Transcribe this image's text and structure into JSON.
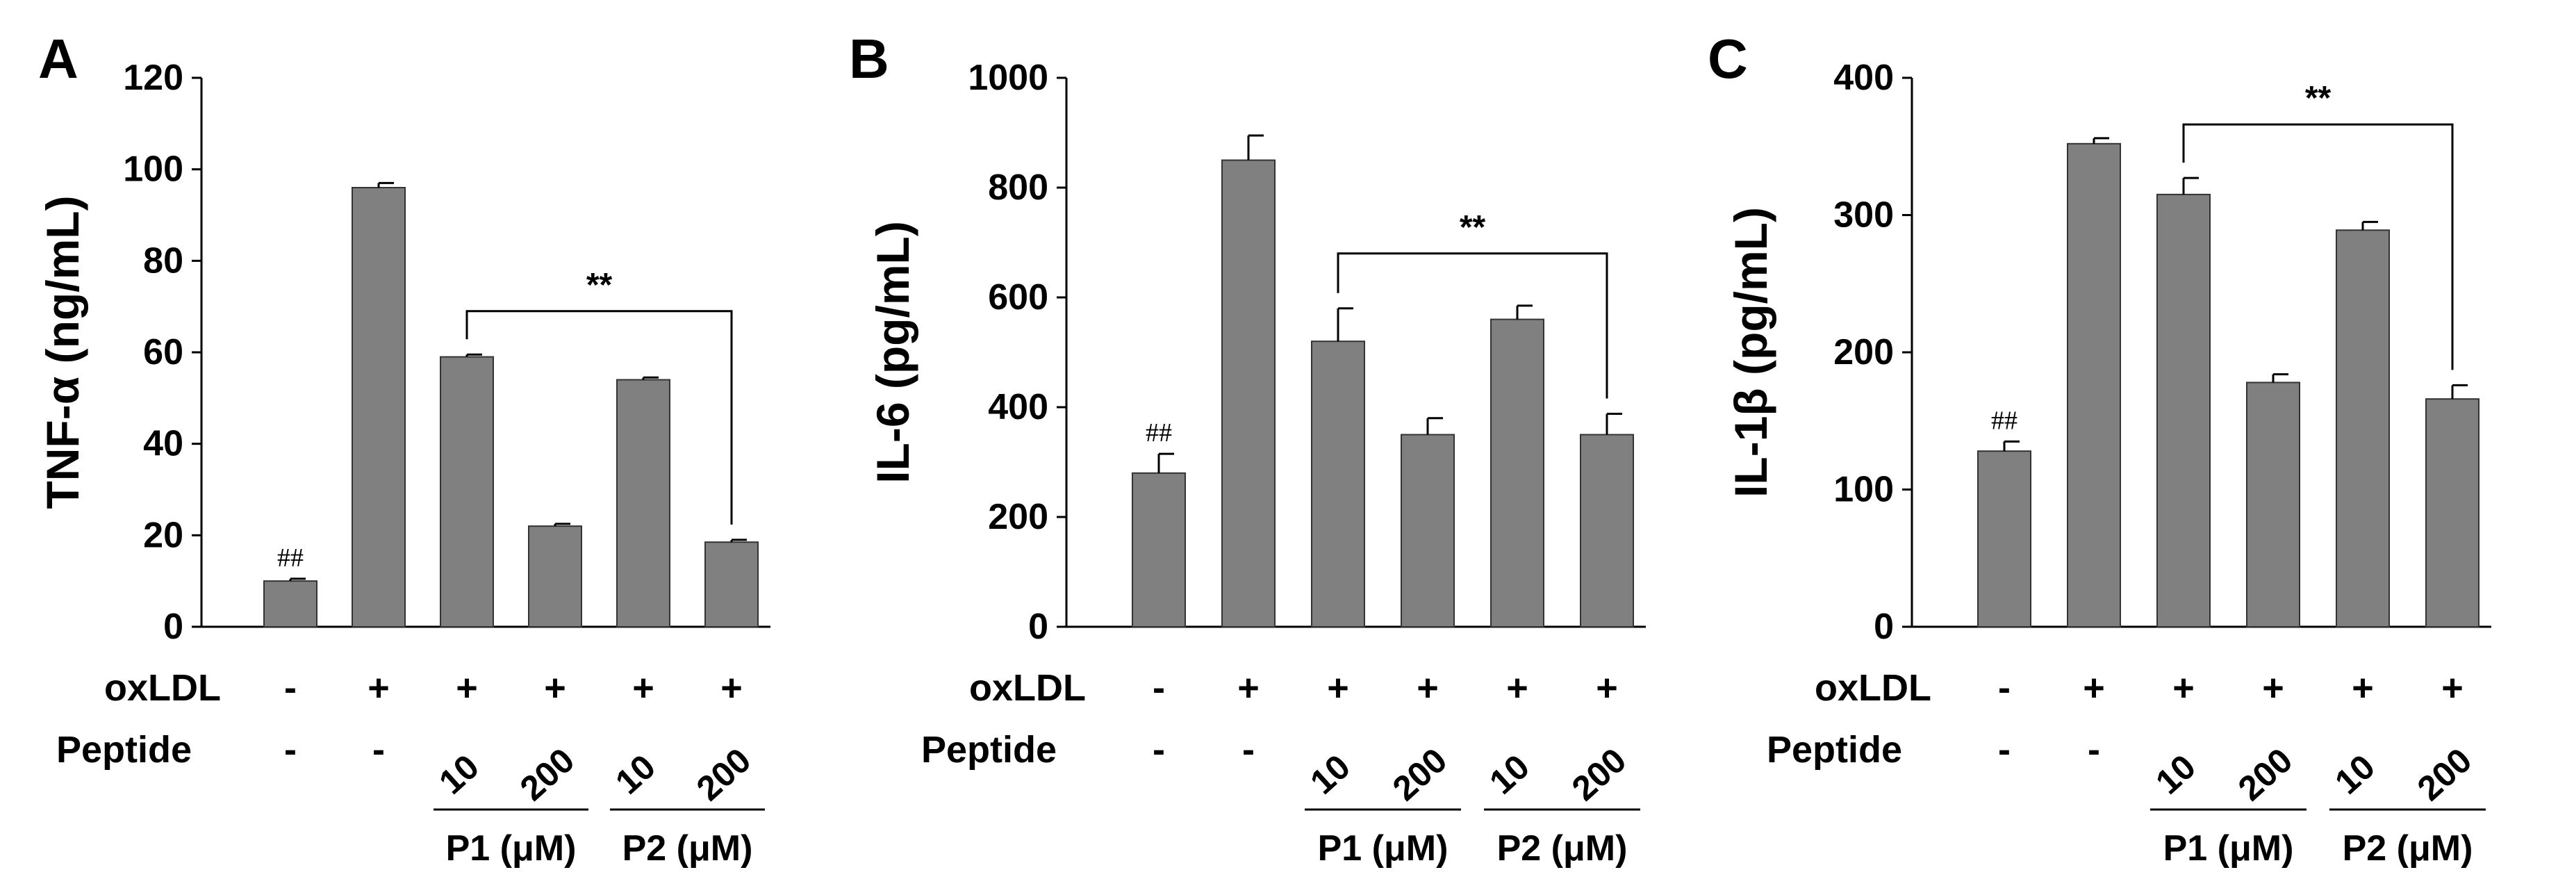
{
  "chart_data": [
    {
      "type": "bar",
      "panel": "A",
      "ylabel": "TNF-α (ng/mL)",
      "ylim": [
        0,
        120
      ],
      "yticks": [
        0,
        20,
        40,
        60,
        80,
        100,
        120
      ],
      "oxldl": [
        "-",
        "+",
        "+",
        "+",
        "+",
        "+"
      ],
      "peptide": [
        "-",
        "-",
        "10",
        "200",
        "10",
        "200"
      ],
      "groups": [
        "P1 (μM)",
        "P2 (μM)"
      ],
      "values": [
        10,
        96,
        59,
        22,
        54,
        18.5
      ],
      "errors": [
        0.5,
        1,
        0.5,
        0.5,
        0.5,
        0.5
      ],
      "hash_label": "##",
      "bracket": {
        "from": 2,
        "to": 5,
        "label": "**"
      }
    },
    {
      "type": "bar",
      "panel": "B",
      "ylabel": "IL-6 (pg/mL)",
      "ylim": [
        0,
        1000
      ],
      "yticks": [
        0,
        200,
        400,
        600,
        800,
        1000
      ],
      "oxldl": [
        "-",
        "+",
        "+",
        "+",
        "+",
        "+"
      ],
      "peptide": [
        "-",
        "-",
        "10",
        "200",
        "10",
        "200"
      ],
      "groups": [
        "P1 (μM)",
        "P2 (μM)"
      ],
      "values": [
        280,
        850,
        520,
        350,
        560,
        350
      ],
      "errors": [
        35,
        45,
        60,
        30,
        25,
        38
      ],
      "hash_label": "##",
      "bracket": {
        "from": 2,
        "to": 5,
        "label": "**"
      }
    },
    {
      "type": "bar",
      "panel": "C",
      "ylabel": "IL-1β (pg/mL)",
      "ylim": [
        0,
        400
      ],
      "yticks": [
        0,
        100,
        200,
        300,
        400
      ],
      "oxldl": [
        "-",
        "+",
        "+",
        "+",
        "+",
        "+"
      ],
      "peptide": [
        "-",
        "-",
        "10",
        "200",
        "10",
        "200"
      ],
      "groups": [
        "P1 (μM)",
        "P2 (μM)"
      ],
      "values": [
        128,
        352,
        315,
        178,
        289,
        166
      ],
      "errors": [
        7,
        4,
        12,
        6,
        6,
        10
      ],
      "hash_label": "##",
      "bracket": {
        "from": 2,
        "to": 5,
        "label": "**"
      }
    }
  ],
  "row_labels": {
    "oxldl": "oxLDL",
    "peptide": "Peptide"
  },
  "colors": {
    "bar": "#808080",
    "ink": "#000000"
  }
}
